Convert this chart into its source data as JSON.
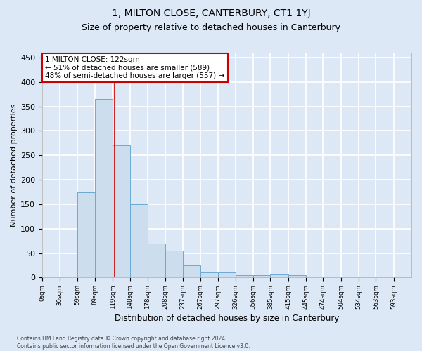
{
  "title": "1, MILTON CLOSE, CANTERBURY, CT1 1YJ",
  "subtitle": "Size of property relative to detached houses in Canterbury",
  "xlabel": "Distribution of detached houses by size in Canterbury",
  "ylabel": "Number of detached properties",
  "footnote": "Contains HM Land Registry data © Crown copyright and database right 2024.\nContains public sector information licensed under the Open Government Licence v3.0.",
  "bar_lefts": [
    0,
    29.5,
    59,
    89,
    119,
    148,
    178,
    208,
    237,
    267,
    297,
    326,
    356,
    385,
    415,
    445,
    474,
    504,
    534,
    563,
    593
  ],
  "bar_widths": [
    29.5,
    29.5,
    30,
    30,
    29,
    30,
    30,
    29,
    30,
    30,
    29,
    30,
    29,
    30,
    30,
    29,
    30,
    30,
    29,
    30,
    30
  ],
  "bar_heights": [
    2,
    2,
    175,
    365,
    270,
    150,
    70,
    55,
    25,
    10,
    10,
    5,
    5,
    6,
    5,
    0,
    2,
    0,
    2,
    0,
    2
  ],
  "tick_labels": [
    "0sqm",
    "30sqm",
    "59sqm",
    "89sqm",
    "119sqm",
    "148sqm",
    "178sqm",
    "208sqm",
    "237sqm",
    "267sqm",
    "297sqm",
    "326sqm",
    "356sqm",
    "385sqm",
    "415sqm",
    "445sqm",
    "474sqm",
    "504sqm",
    "534sqm",
    "563sqm",
    "593sqm"
  ],
  "bar_color": "#ccdded",
  "bar_edge_color": "#6aaad4",
  "property_line_x": 122,
  "annotation_text": "1 MILTON CLOSE: 122sqm\n← 51% of detached houses are smaller (589)\n48% of semi-detached houses are larger (557) →",
  "annotation_box_color": "#ffffff",
  "annotation_box_edgecolor": "#cc0000",
  "property_line_color": "#cc0000",
  "ylim": [
    0,
    460
  ],
  "yticks": [
    0,
    50,
    100,
    150,
    200,
    250,
    300,
    350,
    400,
    450
  ],
  "xlim": [
    0,
    623
  ],
  "background_color": "#dce8f5",
  "plot_bg_color": "#dce8f5",
  "fig_bg_color": "#dce8f5",
  "grid_color": "#ffffff",
  "title_fontsize": 10,
  "subtitle_fontsize": 9,
  "footnote_fontsize": 5.5
}
